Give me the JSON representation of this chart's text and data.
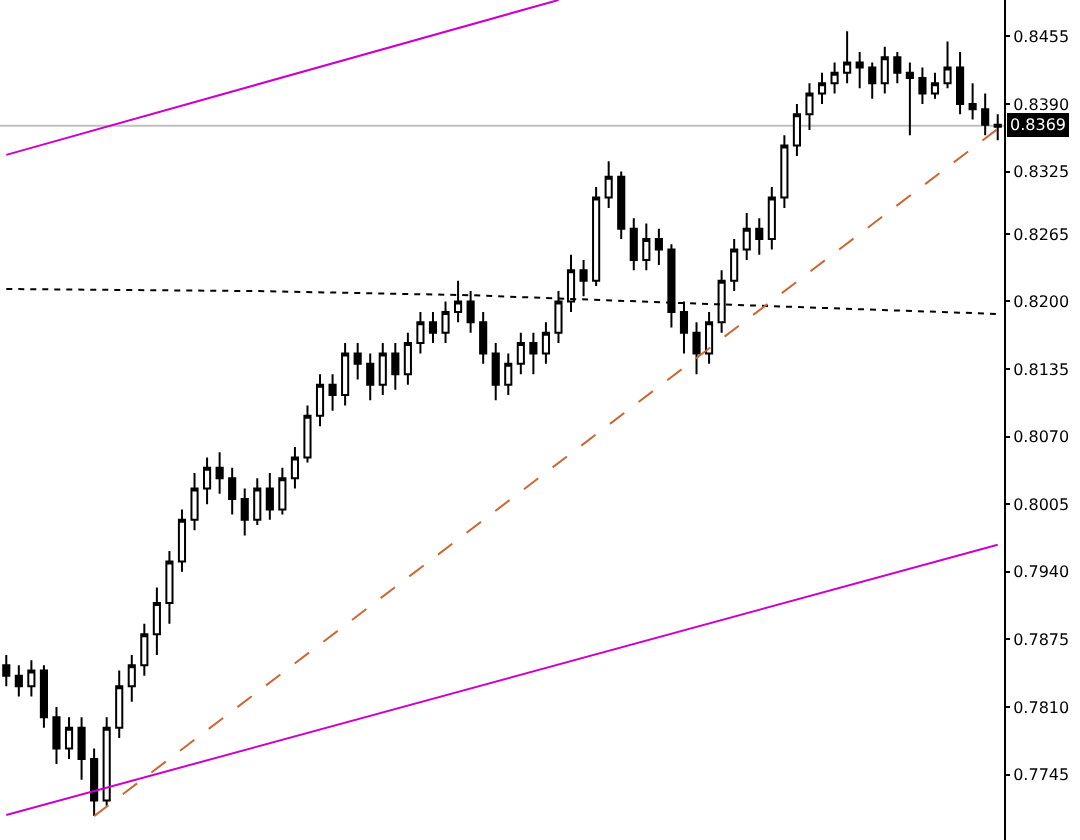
{
  "chart_data": {
    "type": "candlestick",
    "tick_labels": "y",
    "grid": false,
    "categories": [
      null,
      null,
      null,
      null,
      null,
      null,
      null,
      null,
      null,
      null,
      null,
      null,
      null,
      null,
      null,
      null,
      null,
      null,
      null,
      null,
      null,
      null,
      null,
      null,
      null,
      null,
      null,
      null,
      null,
      null,
      null,
      null,
      null,
      null,
      null,
      null,
      null,
      null,
      null,
      null,
      null,
      null,
      null,
      null,
      null,
      null,
      null,
      null,
      null,
      null,
      null,
      null,
      null,
      null,
      null,
      null,
      null,
      null,
      null,
      null,
      null,
      null,
      null,
      null,
      null,
      null,
      null,
      null,
      null,
      null,
      null,
      null,
      null,
      null,
      null,
      null,
      null,
      null,
      null,
      null
    ],
    "ohlc": [
      [
        0.785,
        0.786,
        0.783,
        0.784
      ],
      [
        0.784,
        0.785,
        0.782,
        0.783
      ],
      [
        0.783,
        0.7855,
        0.782,
        0.7845
      ],
      [
        0.7845,
        0.785,
        0.779,
        0.78
      ],
      [
        0.78,
        0.781,
        0.7755,
        0.777
      ],
      [
        0.777,
        0.78,
        0.776,
        0.779
      ],
      [
        0.779,
        0.78,
        0.774,
        0.776
      ],
      [
        0.776,
        0.777,
        0.7705,
        0.772
      ],
      [
        0.772,
        0.78,
        0.7715,
        0.779
      ],
      [
        0.779,
        0.7845,
        0.778,
        0.783
      ],
      [
        0.783,
        0.786,
        0.7815,
        0.785
      ],
      [
        0.785,
        0.789,
        0.784,
        0.788
      ],
      [
        0.788,
        0.7925,
        0.786,
        0.791
      ],
      [
        0.791,
        0.796,
        0.789,
        0.795
      ],
      [
        0.795,
        0.8,
        0.794,
        0.799
      ],
      [
        0.799,
        0.8035,
        0.798,
        0.802
      ],
      [
        0.802,
        0.805,
        0.8005,
        0.804
      ],
      [
        0.804,
        0.8055,
        0.8015,
        0.803
      ],
      [
        0.803,
        0.804,
        0.7995,
        0.801
      ],
      [
        0.801,
        0.802,
        0.7975,
        0.799
      ],
      [
        0.799,
        0.803,
        0.7985,
        0.802
      ],
      [
        0.802,
        0.8035,
        0.799,
        0.8
      ],
      [
        0.8,
        0.804,
        0.7995,
        0.803
      ],
      [
        0.803,
        0.806,
        0.802,
        0.805
      ],
      [
        0.805,
        0.81,
        0.8045,
        0.809
      ],
      [
        0.809,
        0.813,
        0.808,
        0.812
      ],
      [
        0.812,
        0.813,
        0.8095,
        0.811
      ],
      [
        0.811,
        0.816,
        0.81,
        0.815
      ],
      [
        0.815,
        0.816,
        0.8125,
        0.814
      ],
      [
        0.814,
        0.815,
        0.8105,
        0.812
      ],
      [
        0.812,
        0.816,
        0.811,
        0.815
      ],
      [
        0.815,
        0.816,
        0.8115,
        0.813
      ],
      [
        0.813,
        0.817,
        0.812,
        0.816
      ],
      [
        0.816,
        0.819,
        0.815,
        0.818
      ],
      [
        0.818,
        0.819,
        0.816,
        0.817
      ],
      [
        0.817,
        0.82,
        0.816,
        0.819
      ],
      [
        0.819,
        0.822,
        0.818,
        0.82
      ],
      [
        0.82,
        0.821,
        0.817,
        0.818
      ],
      [
        0.818,
        0.819,
        0.814,
        0.815
      ],
      [
        0.815,
        0.816,
        0.8105,
        0.812
      ],
      [
        0.812,
        0.815,
        0.811,
        0.814
      ],
      [
        0.814,
        0.817,
        0.813,
        0.816
      ],
      [
        0.816,
        0.817,
        0.813,
        0.815
      ],
      [
        0.815,
        0.818,
        0.814,
        0.817
      ],
      [
        0.817,
        0.821,
        0.816,
        0.82
      ],
      [
        0.82,
        0.8245,
        0.819,
        0.823
      ],
      [
        0.823,
        0.824,
        0.8205,
        0.822
      ],
      [
        0.822,
        0.831,
        0.8215,
        0.83
      ],
      [
        0.83,
        0.8335,
        0.829,
        0.832
      ],
      [
        0.832,
        0.8325,
        0.826,
        0.827
      ],
      [
        0.827,
        0.828,
        0.823,
        0.824
      ],
      [
        0.824,
        0.8275,
        0.823,
        0.826
      ],
      [
        0.826,
        0.827,
        0.8235,
        0.825
      ],
      [
        0.825,
        0.8255,
        0.8175,
        0.819
      ],
      [
        0.819,
        0.82,
        0.815,
        0.817
      ],
      [
        0.817,
        0.818,
        0.813,
        0.815
      ],
      [
        0.815,
        0.819,
        0.814,
        0.818
      ],
      [
        0.818,
        0.823,
        0.817,
        0.822
      ],
      [
        0.822,
        0.826,
        0.821,
        0.825
      ],
      [
        0.825,
        0.8285,
        0.824,
        0.827
      ],
      [
        0.827,
        0.828,
        0.8245,
        0.826
      ],
      [
        0.826,
        0.831,
        0.825,
        0.83
      ],
      [
        0.83,
        0.836,
        0.829,
        0.835
      ],
      [
        0.835,
        0.839,
        0.834,
        0.838
      ],
      [
        0.838,
        0.841,
        0.8365,
        0.84
      ],
      [
        0.84,
        0.842,
        0.839,
        0.841
      ],
      [
        0.841,
        0.843,
        0.84,
        0.842
      ],
      [
        0.842,
        0.846,
        0.841,
        0.843
      ],
      [
        0.843,
        0.844,
        0.8405,
        0.8425
      ],
      [
        0.8425,
        0.843,
        0.8395,
        0.841
      ],
      [
        0.841,
        0.8445,
        0.84,
        0.8435
      ],
      [
        0.8435,
        0.844,
        0.841,
        0.842
      ],
      [
        0.842,
        0.843,
        0.836,
        0.8415
      ],
      [
        0.8415,
        0.8425,
        0.839,
        0.84
      ],
      [
        0.84,
        0.842,
        0.8395,
        0.841
      ],
      [
        0.841,
        0.845,
        0.8405,
        0.8425
      ],
      [
        0.8425,
        0.844,
        0.838,
        0.839
      ],
      [
        0.839,
        0.841,
        0.8375,
        0.8385
      ],
      [
        0.8385,
        0.84,
        0.836,
        0.837
      ],
      [
        0.837,
        0.838,
        0.8355,
        0.8368
      ]
    ],
    "color": "#000000",
    "series": [
      {
        "type": "line",
        "values": [
          0.8212,
          null,
          null,
          null,
          null,
          null,
          null,
          null,
          null,
          null,
          null,
          null,
          null,
          null,
          null,
          null,
          null,
          null,
          null,
          null,
          0.821,
          null,
          null,
          null,
          null,
          null,
          null,
          null,
          null,
          null,
          null,
          null,
          null,
          null,
          null,
          null,
          null,
          0.8206,
          null,
          null,
          null,
          null,
          null,
          null,
          null,
          null,
          null,
          null,
          null,
          null,
          null,
          null,
          null,
          null,
          null,
          0.8198,
          null,
          null,
          null,
          null,
          null,
          null,
          null,
          null,
          null,
          null,
          null,
          null,
          null,
          null,
          null,
          null,
          null,
          null,
          null,
          null,
          null,
          null,
          null,
          0.8188
        ],
        "color": "#000000",
        "line_style": "dotted"
      },
      {
        "type": "line",
        "values": [
          null,
          null,
          null,
          null,
          null,
          null,
          null,
          0.7705,
          null,
          null,
          null,
          null,
          null,
          null,
          null,
          null,
          null,
          null,
          null,
          null,
          null,
          null,
          null,
          null,
          null,
          null,
          null,
          null,
          null,
          null,
          null,
          null,
          null,
          null,
          null,
          null,
          null,
          null,
          null,
          null,
          null,
          null,
          null,
          null,
          null,
          null,
          null,
          null,
          null,
          null,
          null,
          null,
          null,
          null,
          null,
          null,
          null,
          null,
          null,
          null,
          null,
          null,
          null,
          null,
          null,
          null,
          null,
          null,
          null,
          null,
          null,
          null,
          null,
          null,
          null,
          null,
          null,
          null,
          null,
          0.8366
        ],
        "color": "#cc6633",
        "line_style": "dashed"
      },
      {
        "type": "line",
        "values": [
          0.8341,
          null,
          null,
          null,
          null,
          null,
          null,
          null,
          null,
          null,
          null,
          null,
          null,
          null,
          null,
          null,
          null,
          null,
          null,
          null,
          null,
          null,
          null,
          null,
          null,
          null,
          null,
          null,
          null,
          null,
          null,
          null,
          null,
          null,
          null,
          null,
          null,
          null,
          null,
          null,
          null,
          null,
          null,
          null,
          0.849,
          null,
          null,
          null,
          null,
          null,
          null,
          null,
          null,
          null,
          null,
          null,
          null,
          null,
          null,
          null,
          null,
          null,
          null,
          null,
          null,
          null,
          null,
          null,
          null,
          null,
          null,
          null,
          null,
          null,
          null,
          null,
          null,
          null,
          null,
          null
        ],
        "color": "#cc00cc",
        "line_style": "solid"
      },
      {
        "type": "line",
        "values": [
          0.7706,
          null,
          null,
          null,
          null,
          null,
          null,
          null,
          null,
          null,
          null,
          null,
          null,
          null,
          null,
          null,
          null,
          null,
          null,
          null,
          null,
          null,
          null,
          null,
          null,
          null,
          null,
          null,
          null,
          null,
          null,
          null,
          null,
          null,
          null,
          null,
          null,
          null,
          null,
          null,
          null,
          null,
          null,
          null,
          null,
          null,
          null,
          null,
          null,
          null,
          null,
          null,
          null,
          null,
          null,
          null,
          null,
          null,
          null,
          null,
          null,
          null,
          null,
          null,
          null,
          null,
          null,
          null,
          null,
          null,
          null,
          null,
          null,
          null,
          null,
          null,
          null,
          null,
          null,
          0.7966
        ],
        "color": "#cc00cc",
        "line_style": "solid"
      }
    ],
    "ref_lines": [
      {
        "axis": "y",
        "value": 0.8369,
        "label": "0.8369",
        "color": "#c0c0c0"
      }
    ],
    "ylim": [
      0.7682,
      0.849
    ],
    "yticks": [
      0.8455,
      {
        "value": 0.839,
        "label": "0.8390"
      },
      0.8325,
      0.8265,
      {
        "value": 0.82,
        "label": "0.8200"
      },
      0.8135,
      {
        "value": 0.807,
        "label": "0.8070"
      },
      0.8005,
      {
        "value": 0.794,
        "label": "0.7940"
      },
      0.7875,
      {
        "value": 0.781,
        "label": "0.7810"
      },
      0.7745
    ]
  }
}
